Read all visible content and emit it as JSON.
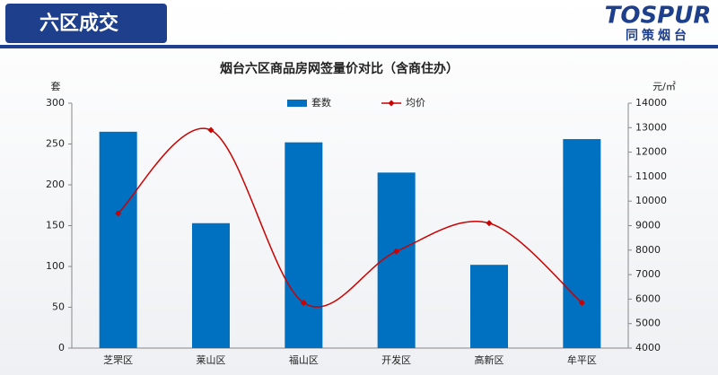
{
  "header": {
    "title": "六区成交",
    "brand": "TOSPUR",
    "brand_subtitle": "同策烟台"
  },
  "chart_data": {
    "type": "bar",
    "title": "烟台六区商品房网签量价对比（含商住办）",
    "y_label": "套",
    "y2_label": "元/㎡",
    "categories": [
      "芝罘区",
      "莱山区",
      "福山区",
      "开发区",
      "高新区",
      "牟平区"
    ],
    "series": [
      {
        "name": "套数",
        "type": "bar",
        "color": "#0070c0",
        "values": [
          265,
          153,
          252,
          215,
          102,
          256
        ]
      },
      {
        "name": "均价",
        "type": "line",
        "axis": "y2",
        "color": "#cc0000",
        "values": [
          9500,
          12900,
          5850,
          7950,
          9100,
          5850
        ]
      }
    ],
    "ylim": [
      0,
      300
    ],
    "yticks": [
      0,
      50,
      100,
      150,
      200,
      250,
      300
    ],
    "y2lim": [
      4000,
      14000
    ],
    "y2ticks": [
      4000,
      5000,
      6000,
      7000,
      8000,
      9000,
      10000,
      11000,
      12000,
      13000,
      14000
    ],
    "legend": "top"
  }
}
